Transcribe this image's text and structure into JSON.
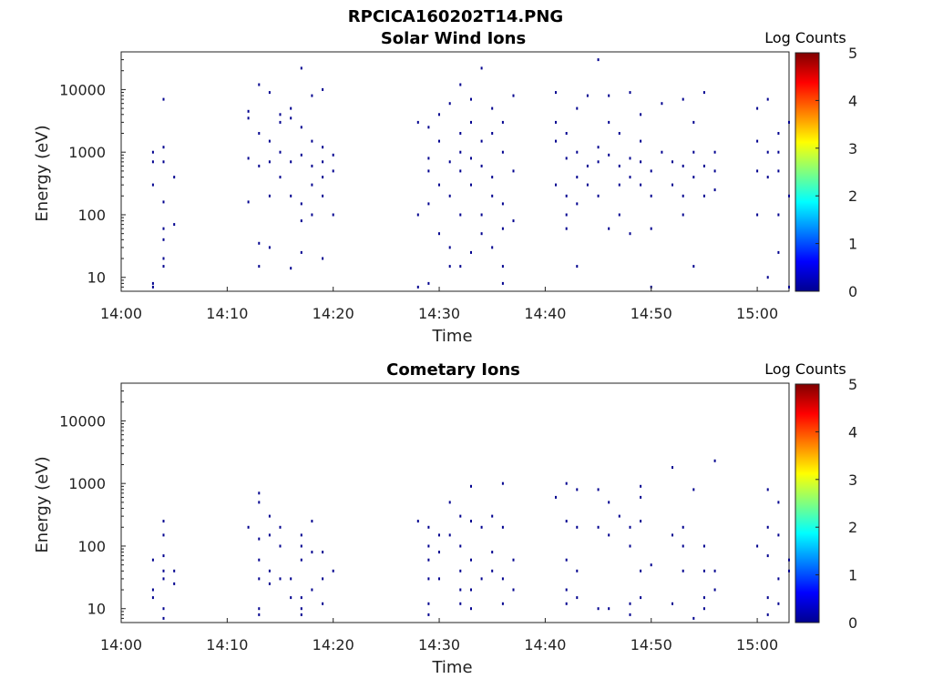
{
  "figure_title": "RPCICA160202T14.PNG",
  "colormap": [
    "#00008f",
    "#0000ff",
    "#00ffff",
    "#ffff00",
    "#ff0000",
    "#800000"
  ],
  "chart_data": [
    {
      "type": "heatmap",
      "title": "Solar Wind Ions",
      "xlabel": "Time",
      "ylabel": "Energy (eV)",
      "y_scale": "log",
      "xlim": [
        "14:00",
        "15:03"
      ],
      "ylim": [
        6,
        40000
      ],
      "x_ticks": [
        "14:00",
        "14:10",
        "14:20",
        "14:30",
        "14:40",
        "14:50",
        "15:00"
      ],
      "y_ticks": [
        "10",
        "100",
        "1000",
        "10000"
      ],
      "colorbar": {
        "label": "Log Counts",
        "range": [
          0,
          5
        ],
        "ticks": [
          "0",
          "1",
          "2",
          "3",
          "4",
          "5"
        ]
      },
      "points": [
        [
          "14:03",
          7
        ],
        [
          "14:03",
          1000
        ],
        [
          "14:03",
          300
        ],
        [
          "14:03",
          700
        ],
        [
          "14:03",
          8
        ],
        [
          "14:04",
          15
        ],
        [
          "14:04",
          60
        ],
        [
          "14:04",
          160
        ],
        [
          "14:04",
          7000
        ],
        [
          "14:04",
          1200
        ],
        [
          "14:04",
          700
        ],
        [
          "14:04",
          40
        ],
        [
          "14:04",
          20
        ],
        [
          "14:05",
          70
        ],
        [
          "14:05",
          400
        ],
        [
          "14:12",
          3500
        ],
        [
          "14:12",
          800
        ],
        [
          "14:12",
          160
        ],
        [
          "14:12",
          4500
        ],
        [
          "14:13",
          2000
        ],
        [
          "14:13",
          12000
        ],
        [
          "14:13",
          600
        ],
        [
          "14:13",
          15
        ],
        [
          "14:13",
          35
        ],
        [
          "14:14",
          700
        ],
        [
          "14:14",
          1500
        ],
        [
          "14:14",
          9000
        ],
        [
          "14:14",
          200
        ],
        [
          "14:14",
          30
        ],
        [
          "14:15",
          4000
        ],
        [
          "14:15",
          1000
        ],
        [
          "14:15",
          400
        ],
        [
          "14:15",
          3000
        ],
        [
          "14:16",
          3500
        ],
        [
          "14:16",
          700
        ],
        [
          "14:16",
          200
        ],
        [
          "14:16",
          5000
        ],
        [
          "14:16",
          14
        ],
        [
          "14:17",
          2500
        ],
        [
          "14:17",
          900
        ],
        [
          "14:17",
          150
        ],
        [
          "14:17",
          80
        ],
        [
          "14:17",
          25
        ],
        [
          "14:17",
          22000
        ],
        [
          "14:18",
          1500
        ],
        [
          "14:18",
          600
        ],
        [
          "14:18",
          300
        ],
        [
          "14:18",
          100
        ],
        [
          "14:18",
          8000
        ],
        [
          "14:19",
          700
        ],
        [
          "14:19",
          1200
        ],
        [
          "14:19",
          400
        ],
        [
          "14:19",
          200
        ],
        [
          "14:19",
          20
        ],
        [
          "14:19",
          10000
        ],
        [
          "14:20",
          900
        ],
        [
          "14:20",
          500
        ],
        [
          "14:20",
          100
        ],
        [
          "14:28",
          100
        ],
        [
          "14:28",
          7
        ],
        [
          "14:28",
          3000
        ],
        [
          "14:29",
          8
        ],
        [
          "14:29",
          150
        ],
        [
          "14:29",
          800
        ],
        [
          "14:29",
          2500
        ],
        [
          "14:29",
          500
        ],
        [
          "14:30",
          1500
        ],
        [
          "14:30",
          300
        ],
        [
          "14:30",
          50
        ],
        [
          "14:30",
          4000
        ],
        [
          "14:31",
          700
        ],
        [
          "14:31",
          200
        ],
        [
          "14:31",
          15
        ],
        [
          "14:31",
          30
        ],
        [
          "14:31",
          6000
        ],
        [
          "14:32",
          1000
        ],
        [
          "14:32",
          2000
        ],
        [
          "14:32",
          500
        ],
        [
          "14:32",
          100
        ],
        [
          "14:32",
          15
        ],
        [
          "14:32",
          12000
        ],
        [
          "14:33",
          800
        ],
        [
          "14:33",
          3000
        ],
        [
          "14:33",
          300
        ],
        [
          "14:33",
          25
        ],
        [
          "14:33",
          7000
        ],
        [
          "14:34",
          1500
        ],
        [
          "14:34",
          600
        ],
        [
          "14:34",
          100
        ],
        [
          "14:34",
          50
        ],
        [
          "14:34",
          22000
        ],
        [
          "14:35",
          2000
        ],
        [
          "14:35",
          400
        ],
        [
          "14:35",
          200
        ],
        [
          "14:35",
          30
        ],
        [
          "14:35",
          5000
        ],
        [
          "14:36",
          1000
        ],
        [
          "14:36",
          150
        ],
        [
          "14:36",
          60
        ],
        [
          "14:36",
          15
        ],
        [
          "14:36",
          8
        ],
        [
          "14:36",
          3000
        ],
        [
          "14:37",
          500
        ],
        [
          "14:37",
          80
        ],
        [
          "14:37",
          8000
        ],
        [
          "14:41",
          1500
        ],
        [
          "14:41",
          300
        ],
        [
          "14:41",
          9000
        ],
        [
          "14:41",
          3000
        ],
        [
          "14:42",
          800
        ],
        [
          "14:42",
          200
        ],
        [
          "14:42",
          100
        ],
        [
          "14:42",
          2000
        ],
        [
          "14:42",
          60
        ],
        [
          "14:43",
          400
        ],
        [
          "14:43",
          1000
        ],
        [
          "14:43",
          5000
        ],
        [
          "14:43",
          150
        ],
        [
          "14:43",
          15
        ],
        [
          "14:44",
          600
        ],
        [
          "14:44",
          300
        ],
        [
          "14:44",
          8000
        ],
        [
          "14:45",
          1200
        ],
        [
          "14:45",
          700
        ],
        [
          "14:45",
          200
        ],
        [
          "14:45",
          30000
        ],
        [
          "14:46",
          900
        ],
        [
          "14:46",
          3000
        ],
        [
          "14:46",
          60
        ],
        [
          "14:46",
          8000
        ],
        [
          "14:47",
          600
        ],
        [
          "14:47",
          300
        ],
        [
          "14:47",
          100
        ],
        [
          "14:47",
          2000
        ],
        [
          "14:48",
          800
        ],
        [
          "14:48",
          400
        ],
        [
          "14:48",
          9000
        ],
        [
          "14:48",
          50
        ],
        [
          "14:49",
          1500
        ],
        [
          "14:49",
          700
        ],
        [
          "14:49",
          300
        ],
        [
          "14:49",
          4000
        ],
        [
          "14:50",
          500
        ],
        [
          "14:50",
          200
        ],
        [
          "14:50",
          60
        ],
        [
          "14:50",
          7
        ],
        [
          "14:51",
          1000
        ],
        [
          "14:51",
          6000
        ],
        [
          "14:52",
          700
        ],
        [
          "14:52",
          300
        ],
        [
          "14:53",
          600
        ],
        [
          "14:53",
          200
        ],
        [
          "14:53",
          100
        ],
        [
          "14:53",
          7000
        ],
        [
          "14:54",
          1000
        ],
        [
          "14:54",
          400
        ],
        [
          "14:54",
          3000
        ],
        [
          "14:54",
          15
        ],
        [
          "14:55",
          600
        ],
        [
          "14:55",
          200
        ],
        [
          "14:55",
          9000
        ],
        [
          "14:56",
          500
        ],
        [
          "14:56",
          1000
        ],
        [
          "14:56",
          250
        ],
        [
          "15:00",
          1500
        ],
        [
          "15:00",
          500
        ],
        [
          "15:00",
          100
        ],
        [
          "15:00",
          5000
        ],
        [
          "15:01",
          1000
        ],
        [
          "15:01",
          400
        ],
        [
          "15:01",
          10
        ],
        [
          "15:01",
          7000
        ],
        [
          "15:02",
          2000
        ],
        [
          "15:02",
          500
        ],
        [
          "15:02",
          100
        ],
        [
          "15:02",
          25
        ],
        [
          "15:02",
          1000
        ],
        [
          "15:03",
          3000
        ],
        [
          "15:03",
          200
        ],
        [
          "15:03",
          7
        ]
      ]
    },
    {
      "type": "heatmap",
      "title": "Cometary Ions",
      "xlabel": "Time",
      "ylabel": "Energy (eV)",
      "y_scale": "log",
      "xlim": [
        "14:00",
        "15:03"
      ],
      "ylim": [
        6,
        40000
      ],
      "x_ticks": [
        "14:00",
        "14:10",
        "14:20",
        "14:30",
        "14:40",
        "14:50",
        "15:00"
      ],
      "y_ticks": [
        "10",
        "100",
        "1000",
        "10000"
      ],
      "colorbar": {
        "label": "Log Counts",
        "range": [
          0,
          5
        ],
        "ticks": [
          "0",
          "1",
          "2",
          "3",
          "4",
          "5"
        ]
      },
      "points": [
        [
          "14:03",
          60
        ],
        [
          "14:03",
          20
        ],
        [
          "14:03",
          15
        ],
        [
          "14:04",
          30
        ],
        [
          "14:04",
          10
        ],
        [
          "14:04",
          7
        ],
        [
          "14:04",
          70
        ],
        [
          "14:04",
          150
        ],
        [
          "14:04",
          250
        ],
        [
          "14:04",
          40
        ],
        [
          "14:05",
          40
        ],
        [
          "14:05",
          25
        ],
        [
          "14:12",
          200
        ],
        [
          "14:13",
          700
        ],
        [
          "14:13",
          500
        ],
        [
          "14:13",
          130
        ],
        [
          "14:13",
          60
        ],
        [
          "14:13",
          30
        ],
        [
          "14:13",
          10
        ],
        [
          "14:13",
          8
        ],
        [
          "14:14",
          300
        ],
        [
          "14:14",
          150
        ],
        [
          "14:14",
          40
        ],
        [
          "14:14",
          25
        ],
        [
          "14:15",
          200
        ],
        [
          "14:15",
          100
        ],
        [
          "14:15",
          30
        ],
        [
          "14:16",
          30
        ],
        [
          "14:16",
          15
        ],
        [
          "14:17",
          100
        ],
        [
          "14:17",
          150
        ],
        [
          "14:17",
          60
        ],
        [
          "14:17",
          15
        ],
        [
          "14:17",
          10
        ],
        [
          "14:17",
          8
        ],
        [
          "14:18",
          250
        ],
        [
          "14:18",
          80
        ],
        [
          "14:18",
          20
        ],
        [
          "14:19",
          80
        ],
        [
          "14:19",
          30
        ],
        [
          "14:19",
          12
        ],
        [
          "14:20",
          40
        ],
        [
          "14:28",
          250
        ],
        [
          "14:29",
          200
        ],
        [
          "14:29",
          100
        ],
        [
          "14:29",
          60
        ],
        [
          "14:29",
          30
        ],
        [
          "14:29",
          12
        ],
        [
          "14:29",
          8
        ],
        [
          "14:30",
          150
        ],
        [
          "14:30",
          80
        ],
        [
          "14:30",
          30
        ],
        [
          "14:31",
          500
        ],
        [
          "14:31",
          150
        ],
        [
          "14:32",
          300
        ],
        [
          "14:32",
          100
        ],
        [
          "14:32",
          40
        ],
        [
          "14:32",
          20
        ],
        [
          "14:32",
          12
        ],
        [
          "14:33",
          900
        ],
        [
          "14:33",
          250
        ],
        [
          "14:33",
          60
        ],
        [
          "14:33",
          20
        ],
        [
          "14:33",
          10
        ],
        [
          "14:34",
          200
        ],
        [
          "14:34",
          30
        ],
        [
          "14:35",
          300
        ],
        [
          "14:35",
          80
        ],
        [
          "14:35",
          40
        ],
        [
          "14:36",
          200
        ],
        [
          "14:36",
          30
        ],
        [
          "14:36",
          12
        ],
        [
          "14:36",
          1000
        ],
        [
          "14:37",
          60
        ],
        [
          "14:37",
          20
        ],
        [
          "14:41",
          600
        ],
        [
          "14:42",
          1000
        ],
        [
          "14:42",
          250
        ],
        [
          "14:42",
          60
        ],
        [
          "14:42",
          20
        ],
        [
          "14:42",
          12
        ],
        [
          "14:43",
          200
        ],
        [
          "14:43",
          800
        ],
        [
          "14:43",
          40
        ],
        [
          "14:43",
          15
        ],
        [
          "14:45",
          800
        ],
        [
          "14:45",
          200
        ],
        [
          "14:45",
          10
        ],
        [
          "14:46",
          500
        ],
        [
          "14:46",
          150
        ],
        [
          "14:46",
          10
        ],
        [
          "14:47",
          300
        ],
        [
          "14:48",
          100
        ],
        [
          "14:48",
          200
        ],
        [
          "14:48",
          12
        ],
        [
          "14:48",
          8
        ],
        [
          "14:49",
          600
        ],
        [
          "14:49",
          900
        ],
        [
          "14:49",
          250
        ],
        [
          "14:49",
          40
        ],
        [
          "14:49",
          15
        ],
        [
          "14:50",
          50
        ],
        [
          "14:52",
          1800
        ],
        [
          "14:52",
          150
        ],
        [
          "14:52",
          12
        ],
        [
          "14:53",
          100
        ],
        [
          "14:53",
          200
        ],
        [
          "14:53",
          40
        ],
        [
          "14:54",
          7
        ],
        [
          "14:54",
          800
        ],
        [
          "14:55",
          100
        ],
        [
          "14:55",
          40
        ],
        [
          "14:55",
          15
        ],
        [
          "14:55",
          10
        ],
        [
          "14:56",
          2300
        ],
        [
          "14:56",
          40
        ],
        [
          "14:56",
          20
        ],
        [
          "15:00",
          100
        ],
        [
          "15:01",
          800
        ],
        [
          "15:01",
          200
        ],
        [
          "15:01",
          70
        ],
        [
          "15:01",
          15
        ],
        [
          "15:01",
          8
        ],
        [
          "15:02",
          150
        ],
        [
          "15:02",
          30
        ],
        [
          "15:02",
          500
        ],
        [
          "15:02",
          12
        ],
        [
          "15:03",
          60
        ],
        [
          "15:03",
          40
        ]
      ]
    }
  ]
}
